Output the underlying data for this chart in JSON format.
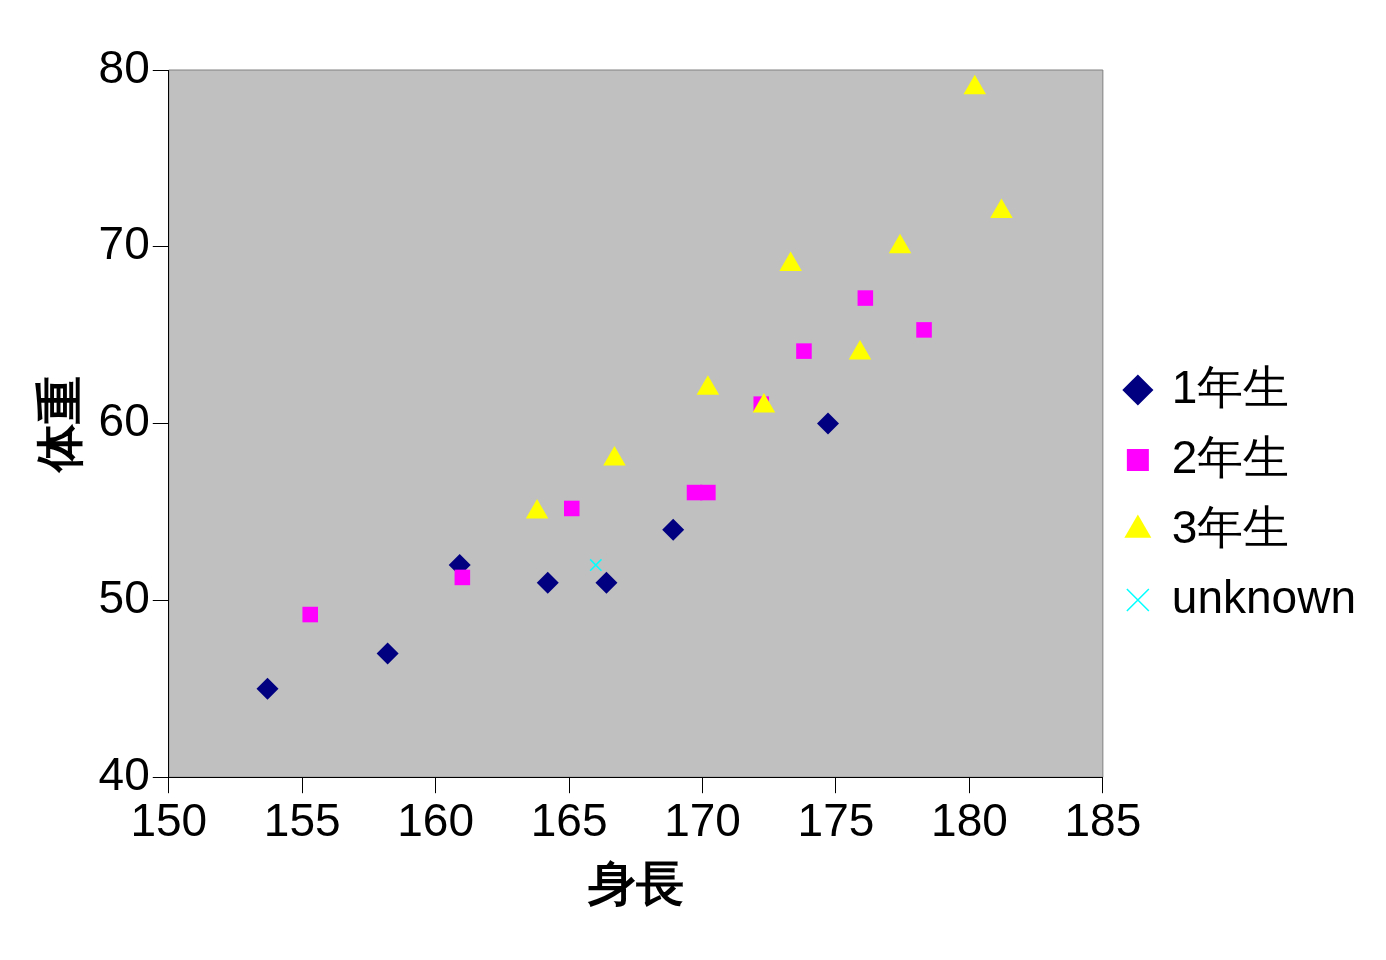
{
  "chart_data": {
    "type": "scatter",
    "xlabel": "身長",
    "ylabel": "体重",
    "xlim": [
      150,
      185
    ],
    "xticks": [
      150,
      155,
      160,
      165,
      170,
      175,
      180,
      185
    ],
    "ylim": [
      40,
      80
    ],
    "yticks": [
      40,
      50,
      60,
      70,
      80
    ],
    "grid": false,
    "legend": "right",
    "series": [
      {
        "name": "1年生",
        "color": "#000080",
        "marker": "diamond",
        "x": [
          153.7,
          158.2,
          160.9,
          164.2,
          166.4,
          168.9,
          174.7
        ],
        "values": [
          45,
          47,
          52,
          51,
          51,
          54,
          60
        ]
      },
      {
        "name": "2年生",
        "color": "#ff00ff",
        "marker": "square",
        "x": [
          155.3,
          161.0,
          165.1,
          169.7,
          170.2,
          172.2,
          173.8,
          176.1,
          178.3
        ],
        "values": [
          49.2,
          51.3,
          55.2,
          56.1,
          56.1,
          61.1,
          64.1,
          67.1,
          65.3
        ]
      },
      {
        "name": "3年生",
        "color": "#ffff00",
        "marker": "triangle",
        "x": [
          163.8,
          166.7,
          170.2,
          172.3,
          173.3,
          175.9,
          177.4,
          180.2,
          181.2
        ],
        "values": [
          55,
          58,
          62,
          61,
          69,
          64,
          70,
          79,
          72
        ]
      },
      {
        "name": "unknown",
        "color": "#00ffff",
        "marker": "cross",
        "x": [
          166.0
        ],
        "values": [
          52
        ]
      }
    ]
  }
}
